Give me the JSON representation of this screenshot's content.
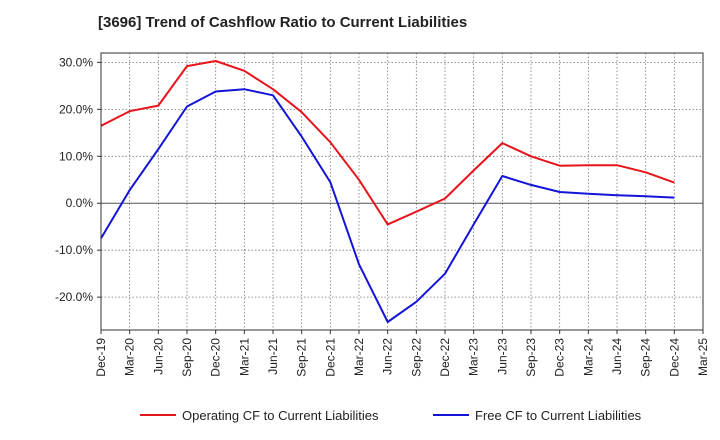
{
  "chart_data": {
    "type": "line",
    "title": "[3696]  Trend of Cashflow Ratio to Current Liabilities",
    "xlabel": "",
    "ylabel": "",
    "x": [
      "Dec-19",
      "Mar-20",
      "Jun-20",
      "Sep-20",
      "Dec-20",
      "Mar-21",
      "Jun-21",
      "Sep-21",
      "Dec-21",
      "Mar-22",
      "Jun-22",
      "Sep-22",
      "Dec-22",
      "Mar-23",
      "Jun-23",
      "Sep-23",
      "Dec-23",
      "Mar-24",
      "Jun-24",
      "Sep-24",
      "Dec-24",
      "Mar-25"
    ],
    "y_ticks": [
      "30.0%",
      "20.0%",
      "10.0%",
      "0.0%",
      "-10.0%",
      "-20.0%"
    ],
    "ylim": [
      -27,
      32
    ],
    "grid": true,
    "legend_position": "bottom",
    "series": [
      {
        "name": "Operating CF to Current Liabilities",
        "color": "#e8141b",
        "values": [
          16.5,
          19.6,
          20.8,
          29.2,
          30.3,
          28.2,
          24.3,
          19.4,
          13.0,
          5.0,
          -4.5,
          -1.8,
          1.0,
          7.0,
          12.8,
          10.0,
          8.0,
          8.1,
          8.1,
          6.6,
          4.4,
          null
        ]
      },
      {
        "name": "Free CF to Current Liabilities",
        "color": "#1414d8",
        "values": [
          -7.5,
          2.8,
          11.5,
          20.6,
          23.8,
          24.3,
          23.0,
          14.2,
          4.5,
          -13.0,
          -25.3,
          -21.0,
          -15.0,
          -4.5,
          5.8,
          3.9,
          2.4,
          2.0,
          1.7,
          1.5,
          1.2,
          null
        ]
      }
    ]
  }
}
